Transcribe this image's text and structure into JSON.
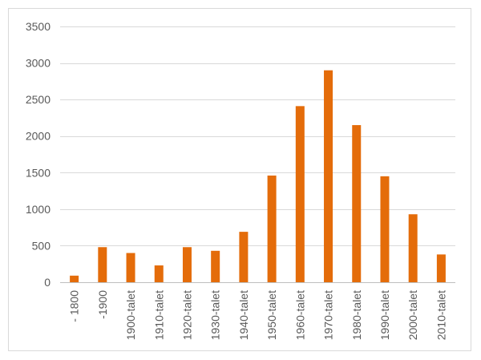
{
  "chart_data": {
    "type": "bar",
    "categories": [
      "- 1800",
      "-1900",
      "1900-talet",
      "1910-talet",
      "1920-talet",
      "1930-talet",
      "1940-talet",
      "1950-talet",
      "1960-talet",
      "1970-talet",
      "1980-talet",
      "1990-talet",
      "2000-talet",
      "2010-talet"
    ],
    "values": [
      90,
      480,
      400,
      230,
      480,
      430,
      690,
      1460,
      2410,
      2900,
      2150,
      1450,
      930,
      380
    ],
    "title": "",
    "xlabel": "",
    "ylabel": "",
    "ylim": [
      0,
      3500
    ],
    "yticks": [
      0,
      500,
      1000,
      1500,
      2000,
      2500,
      3000,
      3500
    ],
    "grid": true,
    "legend": "none",
    "bar_color": "#E46C0A",
    "grid_color": "#D9D9D9",
    "tick_color": "#595959"
  }
}
